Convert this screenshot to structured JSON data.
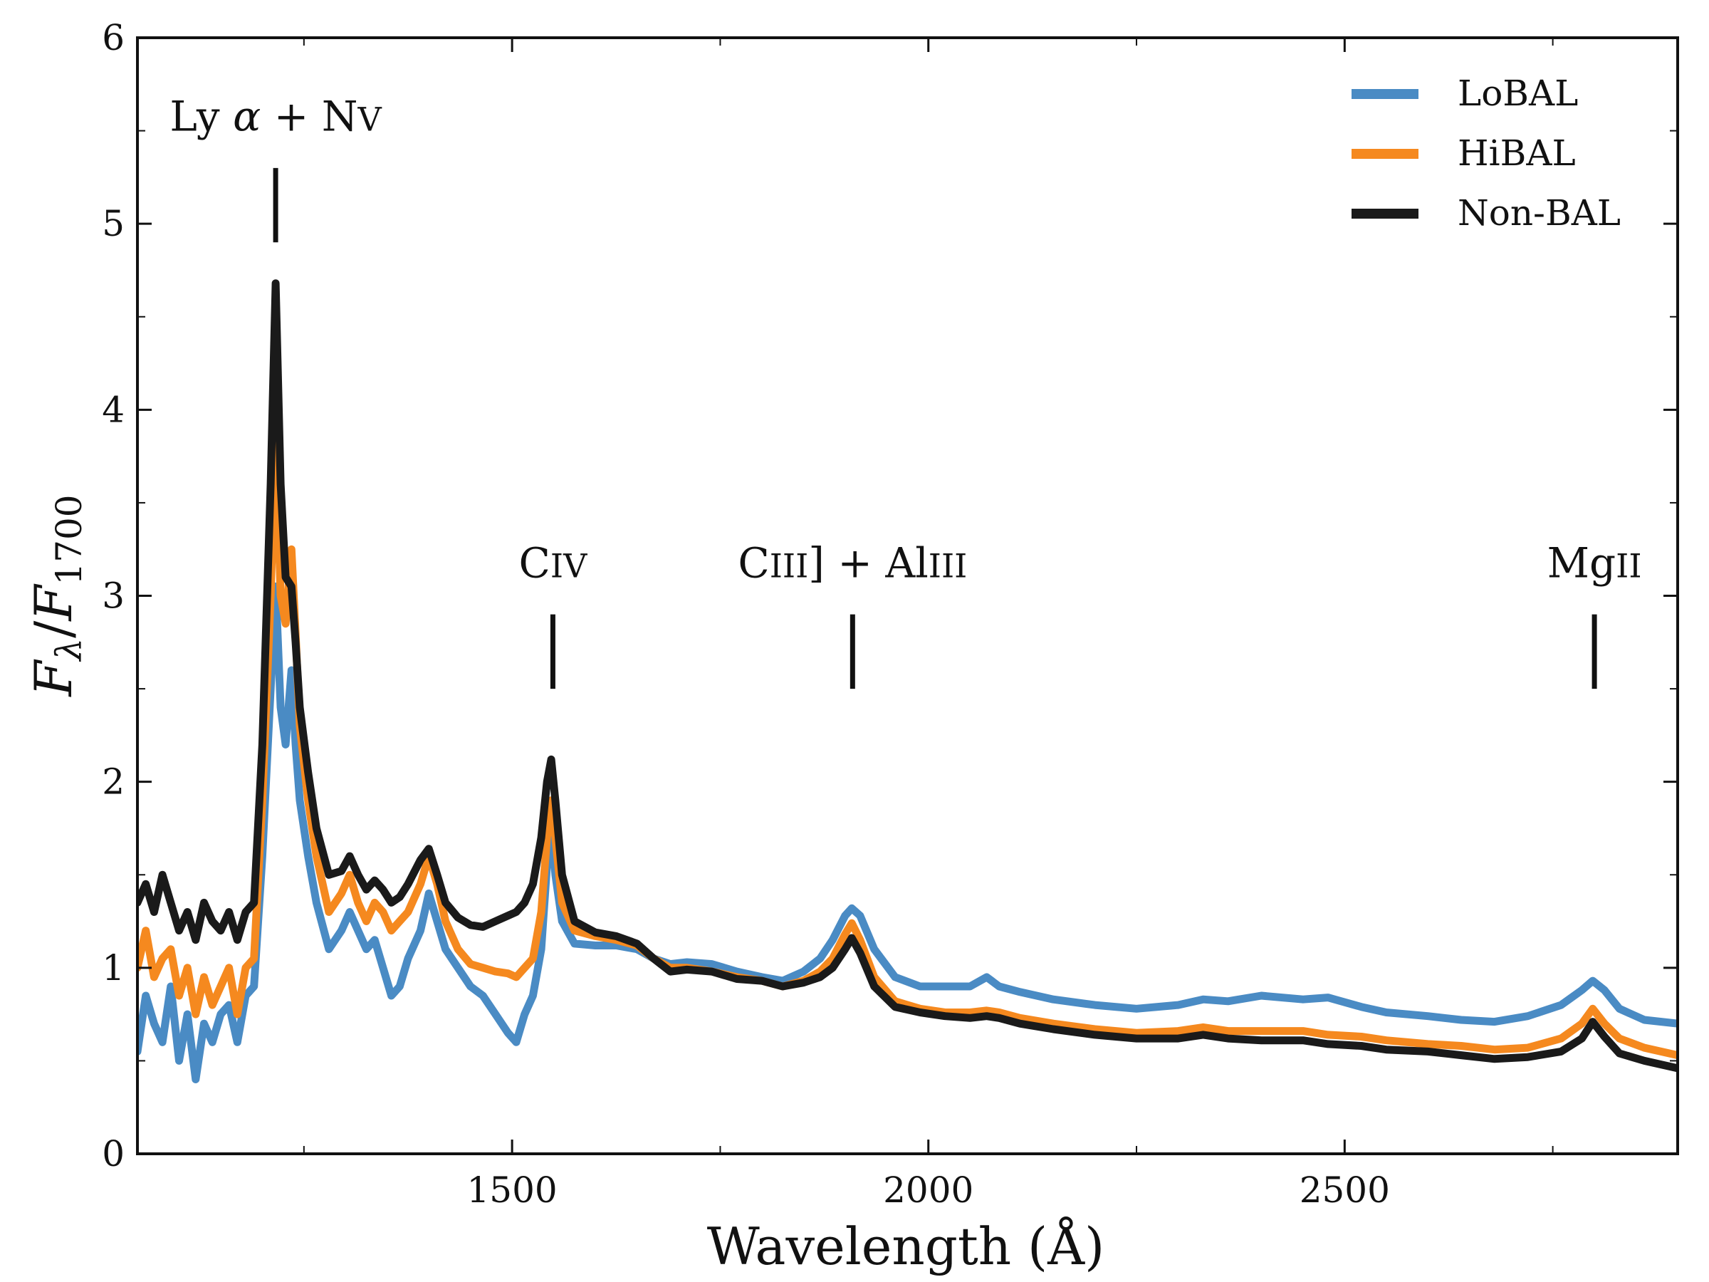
{
  "chart_data": {
    "type": "line",
    "title": "",
    "xlabel": "Wavelength (Å)",
    "ylabel_parts": {
      "f": "F",
      "lambda": "λ",
      "slash": "/",
      "f2": "F",
      "sub": "1700"
    },
    "xlim": [
      1050,
      2900
    ],
    "ylim": [
      0,
      6
    ],
    "xticks": [
      1500,
      2000,
      2500
    ],
    "yticks": [
      0,
      1,
      2,
      3,
      4,
      5,
      6
    ],
    "xtick_labels": [
      "1500",
      "2000",
      "2500"
    ],
    "ytick_labels": [
      "0",
      "1",
      "2",
      "3",
      "4",
      "5",
      "6"
    ],
    "legend_position": "top-right",
    "series": [
      {
        "name": "LoBAL",
        "color": "#4a8bc4",
        "points": [
          [
            1050,
            0.55
          ],
          [
            1060,
            0.85
          ],
          [
            1070,
            0.7
          ],
          [
            1080,
            0.6
          ],
          [
            1090,
            0.9
          ],
          [
            1100,
            0.5
          ],
          [
            1110,
            0.75
          ],
          [
            1120,
            0.4
          ],
          [
            1130,
            0.7
          ],
          [
            1140,
            0.6
          ],
          [
            1150,
            0.75
          ],
          [
            1160,
            0.8
          ],
          [
            1170,
            0.6
          ],
          [
            1180,
            0.85
          ],
          [
            1190,
            0.9
          ],
          [
            1200,
            1.6
          ],
          [
            1210,
            2.5
          ],
          [
            1216,
            3.05
          ],
          [
            1222,
            2.4
          ],
          [
            1228,
            2.2
          ],
          [
            1235,
            2.6
          ],
          [
            1240,
            2.2
          ],
          [
            1245,
            1.9
          ],
          [
            1255,
            1.6
          ],
          [
            1265,
            1.35
          ],
          [
            1280,
            1.1
          ],
          [
            1295,
            1.2
          ],
          [
            1305,
            1.3
          ],
          [
            1315,
            1.2
          ],
          [
            1325,
            1.1
          ],
          [
            1335,
            1.15
          ],
          [
            1345,
            1.0
          ],
          [
            1355,
            0.85
          ],
          [
            1365,
            0.9
          ],
          [
            1375,
            1.05
          ],
          [
            1390,
            1.2
          ],
          [
            1400,
            1.4
          ],
          [
            1410,
            1.25
          ],
          [
            1420,
            1.1
          ],
          [
            1435,
            1.0
          ],
          [
            1450,
            0.9
          ],
          [
            1465,
            0.85
          ],
          [
            1480,
            0.75
          ],
          [
            1495,
            0.65
          ],
          [
            1505,
            0.6
          ],
          [
            1515,
            0.75
          ],
          [
            1525,
            0.85
          ],
          [
            1535,
            1.1
          ],
          [
            1542,
            1.55
          ],
          [
            1547,
            1.75
          ],
          [
            1552,
            1.5
          ],
          [
            1560,
            1.25
          ],
          [
            1575,
            1.13
          ],
          [
            1600,
            1.12
          ],
          [
            1625,
            1.12
          ],
          [
            1650,
            1.1
          ],
          [
            1670,
            1.05
          ],
          [
            1690,
            1.02
          ],
          [
            1710,
            1.03
          ],
          [
            1740,
            1.02
          ],
          [
            1770,
            0.98
          ],
          [
            1800,
            0.95
          ],
          [
            1825,
            0.93
          ],
          [
            1850,
            0.98
          ],
          [
            1870,
            1.05
          ],
          [
            1885,
            1.15
          ],
          [
            1900,
            1.28
          ],
          [
            1908,
            1.32
          ],
          [
            1918,
            1.28
          ],
          [
            1935,
            1.1
          ],
          [
            1960,
            0.95
          ],
          [
            1990,
            0.9
          ],
          [
            2020,
            0.9
          ],
          [
            2050,
            0.9
          ],
          [
            2070,
            0.95
          ],
          [
            2085,
            0.9
          ],
          [
            2110,
            0.87
          ],
          [
            2150,
            0.83
          ],
          [
            2200,
            0.8
          ],
          [
            2250,
            0.78
          ],
          [
            2300,
            0.8
          ],
          [
            2330,
            0.83
          ],
          [
            2360,
            0.82
          ],
          [
            2400,
            0.85
          ],
          [
            2450,
            0.83
          ],
          [
            2480,
            0.84
          ],
          [
            2520,
            0.79
          ],
          [
            2550,
            0.76
          ],
          [
            2600,
            0.74
          ],
          [
            2640,
            0.72
          ],
          [
            2680,
            0.71
          ],
          [
            2720,
            0.74
          ],
          [
            2760,
            0.8
          ],
          [
            2785,
            0.88
          ],
          [
            2798,
            0.93
          ],
          [
            2812,
            0.88
          ],
          [
            2830,
            0.78
          ],
          [
            2860,
            0.72
          ],
          [
            2900,
            0.7
          ]
        ]
      },
      {
        "name": "HiBAL",
        "color": "#f5891f",
        "points": [
          [
            1050,
            1.0
          ],
          [
            1060,
            1.2
          ],
          [
            1070,
            0.95
          ],
          [
            1080,
            1.05
          ],
          [
            1090,
            1.1
          ],
          [
            1100,
            0.85
          ],
          [
            1110,
            1.0
          ],
          [
            1120,
            0.75
          ],
          [
            1130,
            0.95
          ],
          [
            1140,
            0.8
          ],
          [
            1150,
            0.9
          ],
          [
            1160,
            1.0
          ],
          [
            1170,
            0.75
          ],
          [
            1180,
            1.0
          ],
          [
            1190,
            1.05
          ],
          [
            1200,
            1.9
          ],
          [
            1210,
            3.0
          ],
          [
            1216,
            3.85
          ],
          [
            1222,
            3.0
          ],
          [
            1228,
            2.85
          ],
          [
            1235,
            3.25
          ],
          [
            1240,
            2.8
          ],
          [
            1245,
            2.3
          ],
          [
            1255,
            1.9
          ],
          [
            1265,
            1.6
          ],
          [
            1280,
            1.3
          ],
          [
            1295,
            1.4
          ],
          [
            1305,
            1.5
          ],
          [
            1315,
            1.35
          ],
          [
            1325,
            1.25
          ],
          [
            1335,
            1.35
          ],
          [
            1345,
            1.3
          ],
          [
            1355,
            1.2
          ],
          [
            1365,
            1.25
          ],
          [
            1375,
            1.3
          ],
          [
            1390,
            1.45
          ],
          [
            1400,
            1.6
          ],
          [
            1410,
            1.45
          ],
          [
            1420,
            1.25
          ],
          [
            1435,
            1.1
          ],
          [
            1450,
            1.02
          ],
          [
            1465,
            1.0
          ],
          [
            1480,
            0.98
          ],
          [
            1495,
            0.97
          ],
          [
            1505,
            0.95
          ],
          [
            1515,
            1.0
          ],
          [
            1525,
            1.05
          ],
          [
            1535,
            1.3
          ],
          [
            1542,
            1.7
          ],
          [
            1547,
            1.9
          ],
          [
            1552,
            1.7
          ],
          [
            1560,
            1.35
          ],
          [
            1575,
            1.2
          ],
          [
            1600,
            1.17
          ],
          [
            1625,
            1.15
          ],
          [
            1650,
            1.12
          ],
          [
            1670,
            1.05
          ],
          [
            1690,
            1.0
          ],
          [
            1710,
            1.0
          ],
          [
            1740,
            0.98
          ],
          [
            1770,
            0.95
          ],
          [
            1800,
            0.93
          ],
          [
            1825,
            0.9
          ],
          [
            1850,
            0.93
          ],
          [
            1870,
            0.98
          ],
          [
            1885,
            1.05
          ],
          [
            1900,
            1.18
          ],
          [
            1908,
            1.24
          ],
          [
            1918,
            1.15
          ],
          [
            1935,
            0.95
          ],
          [
            1960,
            0.82
          ],
          [
            1990,
            0.78
          ],
          [
            2020,
            0.76
          ],
          [
            2050,
            0.76
          ],
          [
            2070,
            0.77
          ],
          [
            2085,
            0.76
          ],
          [
            2110,
            0.73
          ],
          [
            2150,
            0.7
          ],
          [
            2200,
            0.67
          ],
          [
            2250,
            0.65
          ],
          [
            2300,
            0.66
          ],
          [
            2330,
            0.68
          ],
          [
            2360,
            0.66
          ],
          [
            2400,
            0.66
          ],
          [
            2450,
            0.66
          ],
          [
            2480,
            0.64
          ],
          [
            2520,
            0.63
          ],
          [
            2550,
            0.61
          ],
          [
            2600,
            0.59
          ],
          [
            2640,
            0.58
          ],
          [
            2680,
            0.56
          ],
          [
            2720,
            0.57
          ],
          [
            2760,
            0.62
          ],
          [
            2785,
            0.7
          ],
          [
            2798,
            0.78
          ],
          [
            2812,
            0.7
          ],
          [
            2830,
            0.62
          ],
          [
            2860,
            0.57
          ],
          [
            2900,
            0.53
          ]
        ]
      },
      {
        "name": "Non-BAL",
        "color": "#1a1a1a",
        "points": [
          [
            1050,
            1.35
          ],
          [
            1060,
            1.45
          ],
          [
            1070,
            1.3
          ],
          [
            1080,
            1.5
          ],
          [
            1090,
            1.35
          ],
          [
            1100,
            1.2
          ],
          [
            1110,
            1.3
          ],
          [
            1120,
            1.15
          ],
          [
            1130,
            1.35
          ],
          [
            1140,
            1.25
          ],
          [
            1150,
            1.2
          ],
          [
            1160,
            1.3
          ],
          [
            1170,
            1.15
          ],
          [
            1180,
            1.3
          ],
          [
            1190,
            1.35
          ],
          [
            1200,
            2.2
          ],
          [
            1210,
            3.6
          ],
          [
            1216,
            4.68
          ],
          [
            1222,
            3.6
          ],
          [
            1228,
            3.1
          ],
          [
            1235,
            3.05
          ],
          [
            1240,
            2.75
          ],
          [
            1245,
            2.4
          ],
          [
            1255,
            2.05
          ],
          [
            1265,
            1.75
          ],
          [
            1280,
            1.5
          ],
          [
            1295,
            1.52
          ],
          [
            1305,
            1.6
          ],
          [
            1315,
            1.5
          ],
          [
            1325,
            1.42
          ],
          [
            1335,
            1.47
          ],
          [
            1345,
            1.42
          ],
          [
            1355,
            1.35
          ],
          [
            1365,
            1.38
          ],
          [
            1375,
            1.45
          ],
          [
            1390,
            1.58
          ],
          [
            1400,
            1.64
          ],
          [
            1410,
            1.5
          ],
          [
            1420,
            1.35
          ],
          [
            1435,
            1.27
          ],
          [
            1450,
            1.23
          ],
          [
            1465,
            1.22
          ],
          [
            1480,
            1.25
          ],
          [
            1495,
            1.28
          ],
          [
            1505,
            1.3
          ],
          [
            1515,
            1.35
          ],
          [
            1525,
            1.45
          ],
          [
            1535,
            1.7
          ],
          [
            1542,
            2.0
          ],
          [
            1547,
            2.12
          ],
          [
            1552,
            1.9
          ],
          [
            1560,
            1.5
          ],
          [
            1575,
            1.25
          ],
          [
            1600,
            1.19
          ],
          [
            1625,
            1.17
          ],
          [
            1650,
            1.13
          ],
          [
            1670,
            1.05
          ],
          [
            1690,
            0.98
          ],
          [
            1710,
            0.99
          ],
          [
            1740,
            0.98
          ],
          [
            1770,
            0.94
          ],
          [
            1800,
            0.93
          ],
          [
            1825,
            0.9
          ],
          [
            1850,
            0.92
          ],
          [
            1870,
            0.95
          ],
          [
            1885,
            1.0
          ],
          [
            1900,
            1.1
          ],
          [
            1908,
            1.16
          ],
          [
            1918,
            1.08
          ],
          [
            1935,
            0.9
          ],
          [
            1960,
            0.79
          ],
          [
            1990,
            0.76
          ],
          [
            2020,
            0.74
          ],
          [
            2050,
            0.73
          ],
          [
            2070,
            0.74
          ],
          [
            2085,
            0.73
          ],
          [
            2110,
            0.7
          ],
          [
            2150,
            0.67
          ],
          [
            2200,
            0.64
          ],
          [
            2250,
            0.62
          ],
          [
            2300,
            0.62
          ],
          [
            2330,
            0.64
          ],
          [
            2360,
            0.62
          ],
          [
            2400,
            0.61
          ],
          [
            2450,
            0.61
          ],
          [
            2480,
            0.59
          ],
          [
            2520,
            0.58
          ],
          [
            2550,
            0.56
          ],
          [
            2600,
            0.55
          ],
          [
            2640,
            0.53
          ],
          [
            2680,
            0.51
          ],
          [
            2720,
            0.52
          ],
          [
            2760,
            0.55
          ],
          [
            2785,
            0.62
          ],
          [
            2798,
            0.71
          ],
          [
            2812,
            0.63
          ],
          [
            2830,
            0.54
          ],
          [
            2860,
            0.5
          ],
          [
            2900,
            0.46
          ]
        ]
      }
    ],
    "line_markers": [
      {
        "id": "lya",
        "wavelength": 1216,
        "y_from": 4.9,
        "y_to": 5.3,
        "text_parts": [
          "Ly",
          "α",
          "+",
          "N",
          "V"
        ],
        "label_y": 5.5
      },
      {
        "id": "civ",
        "wavelength": 1549,
        "y_from": 2.5,
        "y_to": 2.9,
        "text_parts": [
          "C",
          "IV"
        ],
        "label_y": 3.1
      },
      {
        "id": "ciii",
        "wavelength": 1909,
        "y_from": 2.5,
        "y_to": 2.9,
        "text_parts": [
          "C",
          "III",
          "] + Al",
          "III"
        ],
        "label_y": 3.1
      },
      {
        "id": "mgii",
        "wavelength": 2800,
        "y_from": 2.5,
        "y_to": 2.9,
        "text_parts": [
          "Mg",
          "II"
        ],
        "label_y": 3.1
      }
    ]
  }
}
